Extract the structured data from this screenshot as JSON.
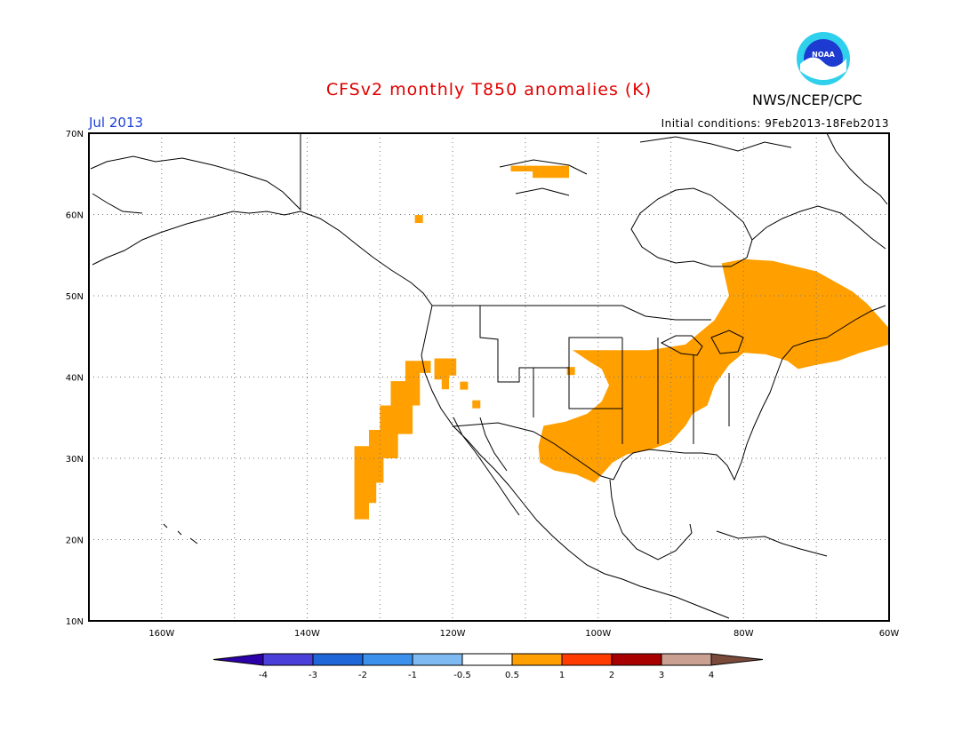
{
  "header": {
    "title": "CFSv2 monthly T850 anomalies (K)",
    "title_color": "#e00000",
    "agency": "NWS/NCEP/CPC",
    "valid_month": "Jul 2013",
    "valid_color": "#1a3fd6",
    "initial_conditions": "Initial conditions: 9Feb2013-18Feb2013"
  },
  "logo": {
    "label": "NOAA",
    "icon": "noaa-logo-icon"
  },
  "map": {
    "projection": "lat-lon",
    "lon_range": [
      -170,
      -60
    ],
    "lat_range": [
      10,
      70
    ],
    "grid": true,
    "lat_labels": [
      "70N",
      "60N",
      "50N",
      "40N",
      "30N",
      "20N",
      "10N"
    ],
    "lon_labels": [
      "160W",
      "140W",
      "120W",
      "100W",
      "80W",
      "60W"
    ],
    "anomaly_color": "#ff9f00"
  },
  "colorbar": {
    "labels": [
      "-4",
      "-3",
      "-2",
      "-1",
      "-0.5",
      "0.5",
      "1",
      "2",
      "3",
      "4"
    ],
    "colors": [
      "#2b00a8",
      "#4a3fd8",
      "#1f66d8",
      "#3c91ec",
      "#7fbaf2",
      "#ffffff",
      "#ff9f00",
      "#ff3b00",
      "#a80000",
      "#c9a091",
      "#7a4a3a"
    ]
  }
}
